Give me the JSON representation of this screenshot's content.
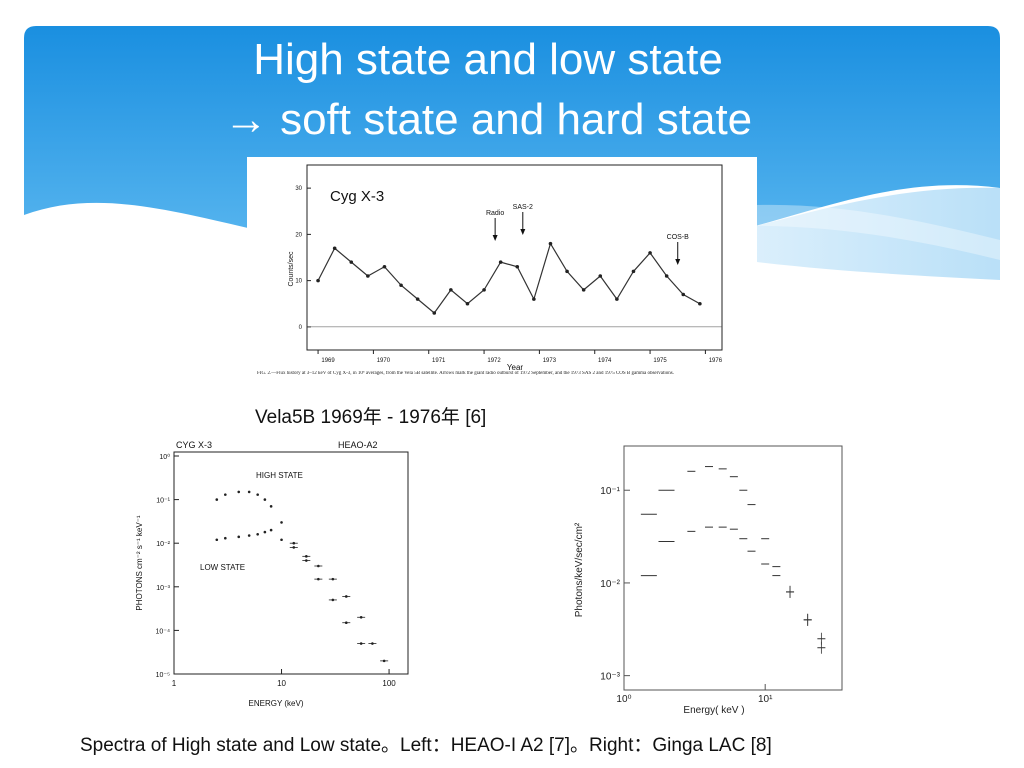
{
  "slide": {
    "title_line1": "High state and low state",
    "title_line2": "→ soft state and hard state",
    "caption_top": "Vela5B  1969年 - 1976年 [6]",
    "caption_bottom": "Spectra of High state and Low state。Left：HEAO-I A2 [7]。Right：Ginga LAC [8]",
    "colors": {
      "header_blue_top": "#1a8fe0",
      "header_blue_bottom": "#6fc3f3"
    }
  },
  "chart_data": [
    {
      "type": "line",
      "title": "Cyg X-3",
      "xlabel": "Year",
      "ylabel": "Counts/sec",
      "x_ticks": [
        "1969",
        "1970",
        "1971",
        "1972",
        "1973",
        "1974",
        "1975",
        "1976"
      ],
      "y_ticks": [
        "0",
        "10",
        "20",
        "30"
      ],
      "ylim": [
        -5,
        35
      ],
      "annotations": [
        "Radio",
        "SAS-2",
        "COS-B"
      ],
      "figure_caption": "FIG. 2.—Flux history at 3–12 keV of Cyg X-3, in 10⁶ averages, from the Vela 5B satellite. Arrows mark the giant radio outburst of 1972 September, and the 1973 SAS 2 and 1975 COS B gamma observations.",
      "series": [
        {
          "x": [
            1969.0,
            1969.3,
            1969.6,
            1969.9,
            1970.2,
            1970.5,
            1970.8,
            1971.1,
            1971.4,
            1971.7,
            1972.0,
            1972.3,
            1972.6,
            1972.9,
            1973.2,
            1973.5,
            1973.8,
            1974.1,
            1974.4,
            1974.7,
            1975.0,
            1975.3,
            1975.6,
            1975.9
          ],
          "y": [
            10,
            17,
            14,
            11,
            13,
            9,
            6,
            3,
            8,
            5,
            8,
            14,
            13,
            6,
            18,
            12,
            8,
            11,
            6,
            12,
            16,
            11,
            7,
            5
          ]
        }
      ]
    },
    {
      "type": "scatter",
      "title": "CYG X-3",
      "instrument": "HEAO-A2",
      "xlabel": "ENERGY (keV)",
      "ylabel": "PHOTONS cm⁻² s⁻¹ keV⁻¹",
      "xscale": "log",
      "yscale": "log",
      "x_ticks": [
        "1",
        "10",
        "100"
      ],
      "y_ticks": [
        "10⁰",
        "10⁻¹",
        "10⁻²",
        "10⁻³",
        "10⁻⁴",
        "10⁻⁵"
      ],
      "series": [
        {
          "name": "HIGH STATE",
          "x": [
            2.5,
            3,
            4,
            5,
            6,
            7,
            8,
            10,
            13,
            17,
            22,
            30,
            40,
            55
          ],
          "y": [
            0.1,
            0.13,
            0.15,
            0.15,
            0.13,
            0.1,
            0.07,
            0.03,
            0.01,
            0.004,
            0.0015,
            0.0005,
            0.00015,
            5e-05
          ]
        },
        {
          "name": "LOW STATE",
          "x": [
            2.5,
            3,
            4,
            5,
            6,
            7,
            8,
            10,
            13,
            17,
            22,
            30,
            40,
            55,
            70,
            90
          ],
          "y": [
            0.012,
            0.013,
            0.014,
            0.015,
            0.016,
            0.018,
            0.02,
            0.012,
            0.008,
            0.005,
            0.003,
            0.0015,
            0.0006,
            0.0002,
            5e-05,
            2e-05
          ]
        }
      ]
    },
    {
      "type": "scatter",
      "xlabel": "Energy( keV )",
      "ylabel": "Photons/keV/sec/cm²",
      "xscale": "log",
      "yscale": "log",
      "x_ticks": [
        "10⁰",
        "10¹"
      ],
      "y_ticks": [
        "10⁻¹",
        "10⁻²",
        "10⁻³"
      ],
      "series": [
        {
          "x": [
            1.5,
            2,
            3,
            4,
            5,
            6,
            7,
            8,
            10,
            12,
            15,
            20,
            25
          ],
          "y": [
            0.055,
            0.1,
            0.16,
            0.18,
            0.17,
            0.14,
            0.1,
            0.07,
            0.03,
            0.015,
            0.008,
            0.004,
            0.0025
          ]
        },
        {
          "x": [
            1.5,
            2,
            3,
            4,
            5,
            6,
            7,
            8,
            10,
            12,
            15,
            20,
            25
          ],
          "y": [
            0.012,
            0.028,
            0.036,
            0.04,
            0.04,
            0.038,
            0.03,
            0.022,
            0.016,
            0.012,
            0.008,
            0.004,
            0.002
          ]
        }
      ]
    }
  ]
}
